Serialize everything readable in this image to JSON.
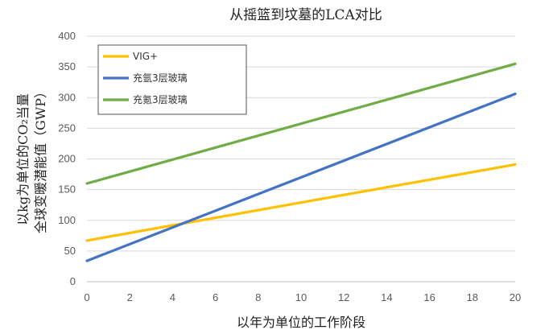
{
  "chart_data": {
    "type": "line",
    "title": "从摇篮到坟墓的LCA对比",
    "xlabel": "以年为单位的工作阶段",
    "ylabel_line1": "以kg为单位的CO₂当量",
    "ylabel_line2": "全球变暖潜能值（GWP）",
    "xlim": [
      0,
      20
    ],
    "ylim": [
      0,
      400
    ],
    "x_ticks": [
      "0",
      "2",
      "4",
      "6",
      "8",
      "10",
      "12",
      "14",
      "16",
      "18",
      "20"
    ],
    "y_ticks": [
      "0",
      "50",
      "100",
      "150",
      "200",
      "250",
      "300",
      "350",
      "400"
    ],
    "grid": "horizontal",
    "legend_position": "top-left",
    "series": [
      {
        "name": "VIG+",
        "color": "#FFC000",
        "x": [
          0,
          20
        ],
        "y": [
          67,
          191
        ]
      },
      {
        "name": "充氩3层玻璃",
        "color": "#4472C4",
        "x": [
          0,
          20
        ],
        "y": [
          34,
          306
        ]
      },
      {
        "name": "充氪3层玻璃",
        "color": "#70AD47",
        "x": [
          0,
          20
        ],
        "y": [
          160,
          355
        ]
      }
    ]
  }
}
